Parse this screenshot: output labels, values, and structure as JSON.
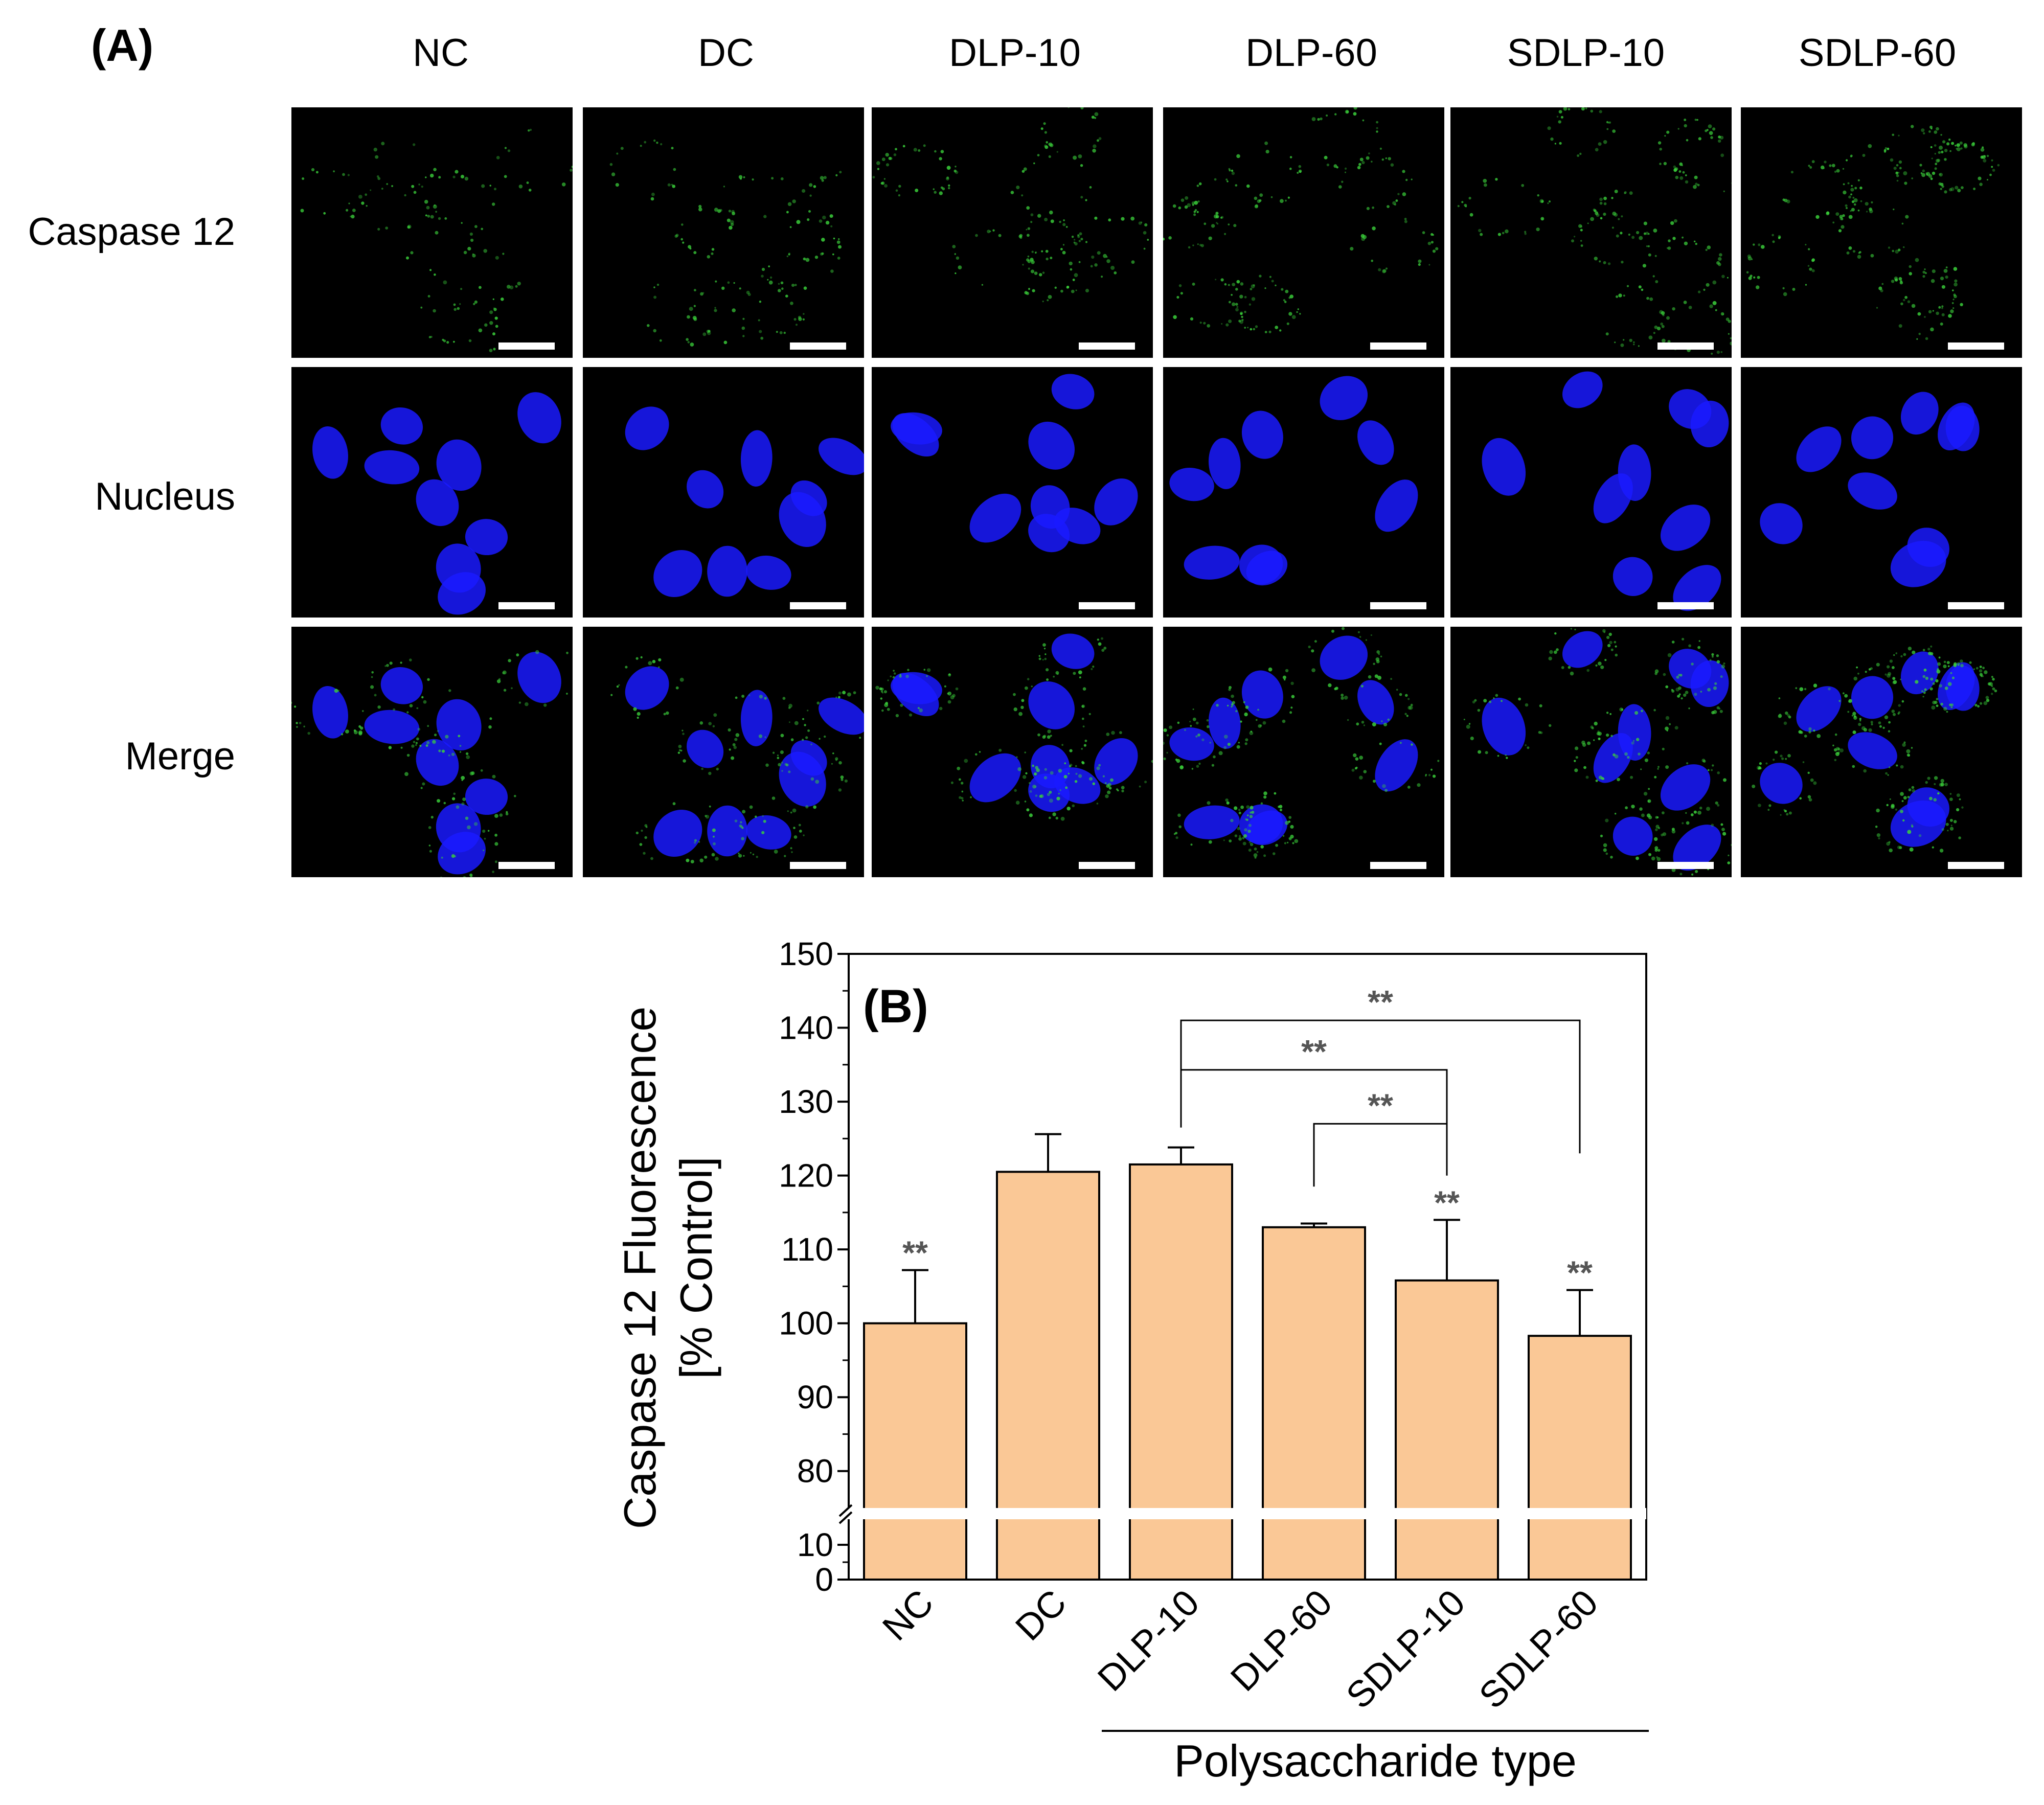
{
  "figure": {
    "panel_a_label": "(A)",
    "panel_b_label": "(B)",
    "columns": [
      "NC",
      "DC",
      "DLP-10",
      "DLP-60",
      "SDLP-10",
      "SDLP-60"
    ],
    "rows": [
      "Caspase 12",
      "Nucleus",
      "Merge"
    ],
    "colors": {
      "caspase": "#3bd23b",
      "nucleus": "#1a1aff",
      "bar_fill": "#fac896",
      "axis": "#000000"
    }
  },
  "chart_data": {
    "type": "bar",
    "categories": [
      "NC",
      "DC",
      "DLP-10",
      "DLP-60",
      "SDLP-10",
      "SDLP-60"
    ],
    "values": [
      100,
      120.5,
      121.5,
      113,
      105.8,
      98.3
    ],
    "errors": [
      7.2,
      5.1,
      2.3,
      0.5,
      8.2,
      6.2
    ],
    "significance": [
      "**",
      "",
      "",
      "",
      "**",
      "**"
    ],
    "comparisons": [
      {
        "from": "DLP-10",
        "to": "SDLP-60",
        "label": "**"
      },
      {
        "from": "DLP-10",
        "to": "SDLP-10",
        "label": "**"
      },
      {
        "from": "DLP-60",
        "to": "SDLP-10",
        "label": "**"
      }
    ],
    "ylabel_line1": "Caspase 12 Fluorescence",
    "ylabel_line2": "[% Control]",
    "xlabel": "Polysaccharide type",
    "y_axis_break": [
      10,
      75
    ],
    "y_ticks_upper": [
      80,
      90,
      100,
      110,
      120,
      130,
      140,
      150
    ],
    "y_ticks_lower": [
      0,
      10
    ],
    "ylim": [
      0,
      150
    ]
  }
}
